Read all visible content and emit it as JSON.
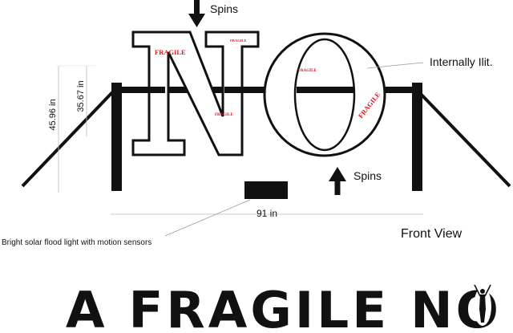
{
  "labels": {
    "spins_top": "Spins",
    "spins_bottom": "Spins",
    "internally_lit": "Internally Ilit.",
    "height_outer": "45.96 in",
    "height_inner": "35.67 in",
    "width": "91 in",
    "flood_light": "Bright solar flood light with motion sensors",
    "view": "Front View"
  },
  "letters": {
    "n": "N",
    "o": "O"
  },
  "stickers": {
    "n_top_left": "FRAGILE",
    "n_top_right": "FRAGILE",
    "n_middle": "FRAGILE",
    "o_top": "FRAGILE",
    "o_right": "FRAGILE"
  },
  "title": {
    "text": "A FRAGILE NO"
  },
  "colors": {
    "ink": "#111111",
    "sticker": "#e0141e",
    "background": "#ffffff"
  }
}
